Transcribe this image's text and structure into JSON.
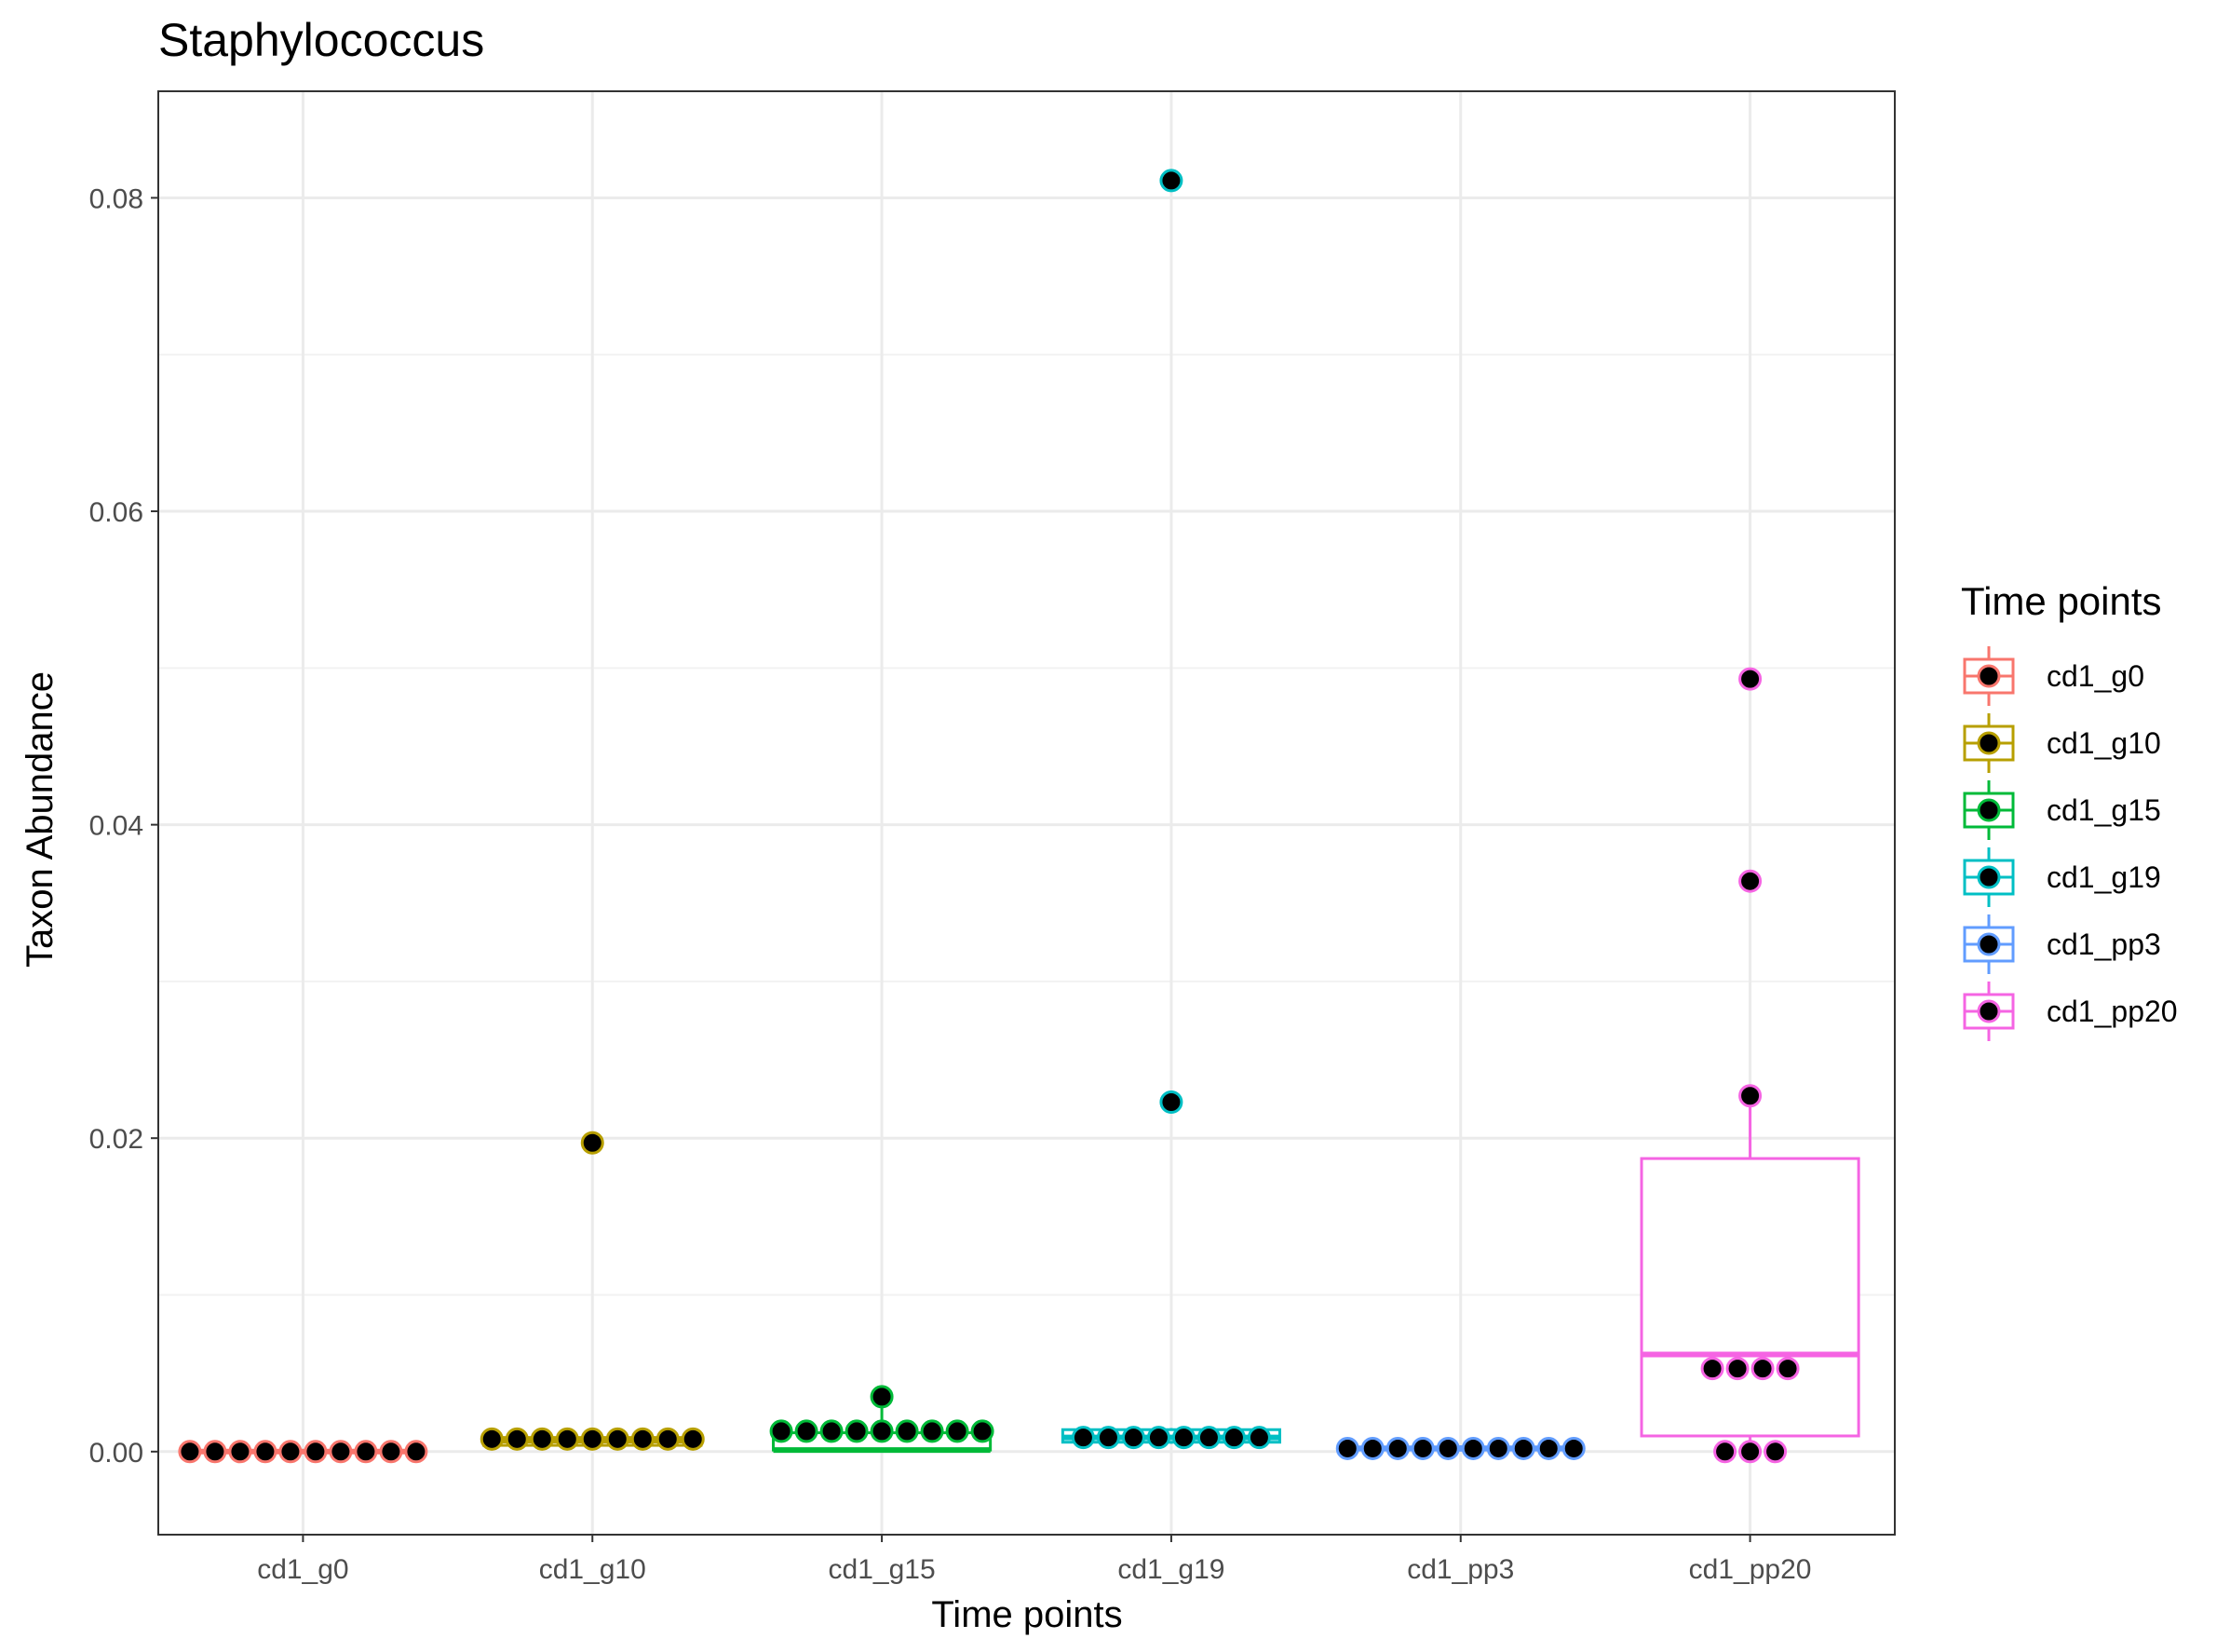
{
  "chart_data": {
    "type": "box",
    "title": "Staphylococcus",
    "xlabel": "Time points",
    "ylabel": "Taxon Abundance",
    "ylim": [
      -0.0053,
      0.0868
    ],
    "yticks": [
      0.0,
      0.02,
      0.04,
      0.06,
      0.08
    ],
    "ytick_labels": [
      "0.00",
      "0.02",
      "0.04",
      "0.06",
      "0.08"
    ],
    "grid": true,
    "legend": {
      "title": "Time points",
      "placement": "right"
    },
    "categories": [
      "cd1_g0",
      "cd1_g10",
      "cd1_g15",
      "cd1_g19",
      "cd1_pp3",
      "cd1_pp20"
    ],
    "series": [
      {
        "name": "cd1_g0",
        "color": "#F8766D",
        "box": {
          "q1": 0.0,
          "median": 0.0,
          "q3": 0.0,
          "whisker_low": 0.0,
          "whisker_high": 0.0
        },
        "points": [
          0.0,
          0.0,
          0.0,
          0.0,
          0.0,
          0.0,
          0.0,
          0.0,
          0.0,
          0.0
        ]
      },
      {
        "name": "cd1_g10",
        "color": "#B79F00",
        "box": {
          "q1": 0.0004,
          "median": 0.0007,
          "q3": 0.0009,
          "whisker_low": 0.0003,
          "whisker_high": 0.0014
        },
        "outliers": [
          0.0197
        ],
        "points": [
          0.0008,
          0.0008,
          0.0008,
          0.0008,
          0.0008,
          0.0008,
          0.0008,
          0.0008,
          0.0008,
          0.0197
        ]
      },
      {
        "name": "cd1_g15",
        "color": "#00BA38",
        "box": {
          "q1": 0.0001,
          "median": 0.0001,
          "q3": 0.0012,
          "whisker_low": 0.0001,
          "whisker_high": 0.0034
        },
        "points": [
          0.0013,
          0.0013,
          0.0013,
          0.0013,
          0.0013,
          0.0013,
          0.0013,
          0.0013,
          0.0013,
          0.0035
        ]
      },
      {
        "name": "cd1_g19",
        "color": "#00BFC4",
        "box": {
          "q1": 0.0006,
          "median": 0.0009,
          "q3": 0.0014,
          "whisker_low": 0.0005,
          "whisker_high": 0.0015
        },
        "outliers": [
          0.0223,
          0.0811
        ],
        "points": [
          0.0009,
          0.0009,
          0.0009,
          0.0009,
          0.0009,
          0.0009,
          0.0009,
          0.0009,
          0.0223,
          0.0811
        ]
      },
      {
        "name": "cd1_pp3",
        "color": "#619CFF",
        "box": {
          "q1": 0.0001,
          "median": 0.0002,
          "q3": 0.0003,
          "whisker_low": 0.0,
          "whisker_high": 0.0004
        },
        "points": [
          0.0002,
          0.0002,
          0.0002,
          0.0002,
          0.0002,
          0.0002,
          0.0002,
          0.0002,
          0.0002,
          0.0002
        ]
      },
      {
        "name": "cd1_pp20",
        "color": "#F564E3",
        "box": {
          "q1": 0.001,
          "median": 0.0062,
          "q3": 0.0187,
          "whisker_low": 0.0,
          "whisker_high": 0.0227
        },
        "outliers": [
          0.0364,
          0.0493
        ],
        "points": [
          0.0,
          0.0,
          0.0,
          0.0053,
          0.0053,
          0.0053,
          0.0053,
          0.0227,
          0.0364,
          0.0493
        ]
      }
    ]
  }
}
